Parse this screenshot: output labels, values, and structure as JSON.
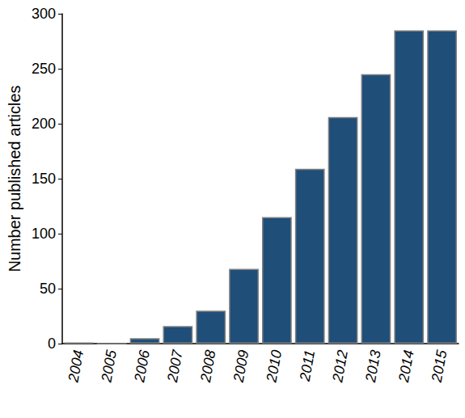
{
  "chart_data": {
    "type": "bar",
    "y_label": "Number published articles",
    "categories": [
      "2004",
      "2005",
      "2006",
      "2007",
      "2008",
      "2009",
      "2010",
      "2011",
      "2012",
      "2013",
      "2014",
      "2015"
    ],
    "values": [
      1,
      0,
      5,
      16,
      30,
      68,
      115,
      159,
      206,
      245,
      285,
      285
    ],
    "color": "#1f4e79",
    "ylim": [
      0,
      300
    ],
    "yticks": [
      0,
      50,
      100,
      150,
      200,
      250,
      300
    ],
    "grid": false
  }
}
